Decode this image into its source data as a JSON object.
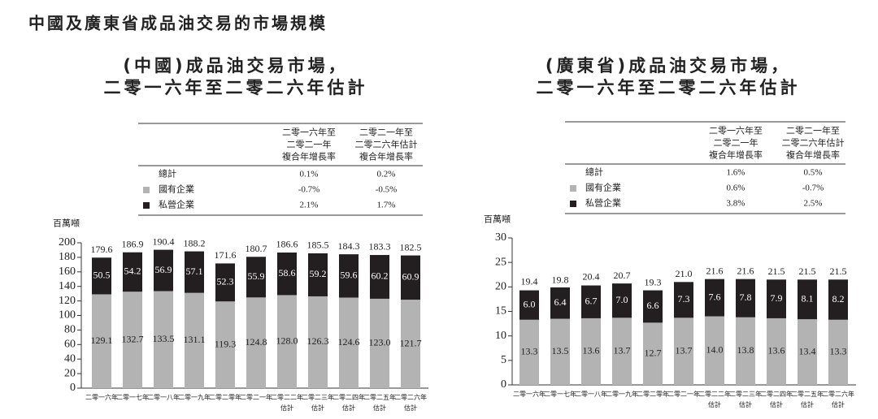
{
  "page_title": "中國及廣東省成品油交易的市場規模",
  "chart_data": [
    {
      "type": "stacked_bar",
      "title": [
        "(中國)成品油交易市場，",
        "二零一六年至二零二六年估計"
      ],
      "y_label": "百萬噸",
      "categories": [
        [
          "二零一六年"
        ],
        [
          "二零一七年"
        ],
        [
          "二零一八年"
        ],
        [
          "二零一九年"
        ],
        [
          "二零二零年"
        ],
        [
          "二零二一年"
        ],
        [
          "二零二二年",
          "估計"
        ],
        [
          "二零二三年",
          "估計"
        ],
        [
          "二零二四年",
          "估計"
        ],
        [
          "二零二五年",
          "估計"
        ],
        [
          "二零二六年",
          "估計"
        ]
      ],
      "series": [
        {
          "name": "國有企業",
          "color": "#b3b3b3",
          "label_color": "#222222",
          "values": [
            129.1,
            132.7,
            133.5,
            131.1,
            119.3,
            124.8,
            128.0,
            126.3,
            124.6,
            123.0,
            121.7
          ],
          "value_labels": [
            "129.1",
            "132.7",
            "133.5",
            "131.1",
            "119.3",
            "124.8",
            "128.0",
            "126.3",
            "124.6",
            "123.0",
            "121.7"
          ]
        },
        {
          "name": "私營企業",
          "color": "#231f20",
          "label_color": "#ffffff",
          "values": [
            50.5,
            54.2,
            56.9,
            57.1,
            52.3,
            55.9,
            58.6,
            59.2,
            59.6,
            60.2,
            60.9
          ],
          "value_labels": [
            "50.5",
            "54.2",
            "56.9",
            "57.1",
            "52.3",
            "55.9",
            "58.6",
            "59.2",
            "59.6",
            "60.2",
            "60.9"
          ]
        }
      ],
      "totals": [
        179.6,
        186.9,
        190.4,
        188.2,
        171.6,
        180.7,
        186.6,
        185.5,
        184.3,
        183.3,
        182.5
      ],
      "total_labels": [
        "179.6",
        "186.9",
        "190.4",
        "188.2",
        "171.6",
        "180.7",
        "186.6",
        "185.5",
        "184.3",
        "183.3",
        "182.5"
      ],
      "ylim": [
        0,
        200
      ],
      "yticks": [
        0,
        20,
        40,
        60,
        80,
        100,
        120,
        140,
        160,
        180,
        200
      ],
      "cagr_table": {
        "header": [
          [
            "二零一六年至",
            "二零二一年",
            "複合年增長率"
          ],
          [
            "二零二一年至",
            "二零二六年估計",
            "複合年增長率"
          ]
        ],
        "total_label": "總計",
        "rows": [
          [
            "0.1%",
            "0.2%"
          ],
          [
            "-0.7%",
            "-0.5%"
          ],
          [
            "2.1%",
            "1.7%"
          ]
        ]
      }
    },
    {
      "type": "stacked_bar",
      "title": [
        "(廣東省)成品油交易市場，",
        "二零一六年至二零二六年估計"
      ],
      "y_label": "百萬噸",
      "categories": [
        [
          "二零一六年"
        ],
        [
          "二零一七年"
        ],
        [
          "二零一八年"
        ],
        [
          "二零一九年"
        ],
        [
          "二零二零年"
        ],
        [
          "二零二一年"
        ],
        [
          "二零二二年",
          "估計"
        ],
        [
          "二零二三年",
          "估計"
        ],
        [
          "二零二四年",
          "估計"
        ],
        [
          "二零二五年",
          "估計"
        ],
        [
          "二零二六年",
          "估計"
        ]
      ],
      "series": [
        {
          "name": "國有企業",
          "color": "#b3b3b3",
          "label_color": "#222222",
          "values": [
            13.3,
            13.5,
            13.6,
            13.7,
            12.7,
            13.7,
            14.0,
            13.8,
            13.6,
            13.4,
            13.3
          ],
          "value_labels": [
            "13.3",
            "13.5",
            "13.6",
            "13.7",
            "12.7",
            "13.7",
            "14.0",
            "13.8",
            "13.6",
            "13.4",
            "13.3"
          ]
        },
        {
          "name": "私營企業",
          "color": "#231f20",
          "label_color": "#ffffff",
          "values": [
            6.0,
            6.4,
            6.7,
            7.0,
            6.6,
            7.3,
            7.6,
            7.8,
            7.9,
            8.1,
            8.2
          ],
          "value_labels": [
            "6.0",
            "6.4",
            "6.7",
            "7.0",
            "6.6",
            "7.3",
            "7.6",
            "7.8",
            "7.9",
            "8.1",
            "8.2"
          ]
        }
      ],
      "totals": [
        19.4,
        19.8,
        20.4,
        20.7,
        19.3,
        21.0,
        21.6,
        21.6,
        21.5,
        21.5,
        21.5
      ],
      "total_labels": [
        "19.4",
        "19.8",
        "20.4",
        "20.7",
        "19.3",
        "21.0",
        "21.6",
        "21.6",
        "21.5",
        "21.5",
        "21.5"
      ],
      "ylim": [
        0,
        30
      ],
      "yticks": [
        0,
        5,
        10,
        15,
        20,
        25,
        30
      ],
      "cagr_table": {
        "header": [
          [
            "二零一六年至",
            "二零二一年",
            "複合年增長率"
          ],
          [
            "二零二一年至",
            "二零二六年估計",
            "複合年增長率"
          ]
        ],
        "total_label": "總計",
        "rows": [
          [
            "1.6%",
            "0.5%"
          ],
          [
            "0.6%",
            "-0.7%"
          ],
          [
            "3.8%",
            "2.5%"
          ]
        ]
      }
    }
  ]
}
